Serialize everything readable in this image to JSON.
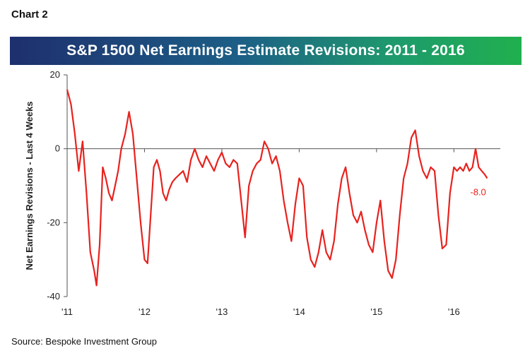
{
  "header": {
    "chart_label": "Chart 2",
    "title": "S&P 1500 Net Earnings Estimate Revisions: 2011 - 2016"
  },
  "footer": {
    "source": "Source: Bespoke Investment Group"
  },
  "colors": {
    "line": "#e8221e",
    "axis": "#555555",
    "banner_start": "#1e2f6e",
    "banner_end": "#20b04e"
  },
  "chart_data": {
    "type": "line",
    "title": "S&P 1500 Net Earnings Estimate Revisions: 2011 - 2016",
    "xlabel": "",
    "ylabel": "Net Earnings Revisions - Last 4 Weeks",
    "ylim": [
      -40,
      20
    ],
    "xlim": [
      2011.0,
      2016.6
    ],
    "yticks": [
      20,
      0,
      -20,
      -40
    ],
    "xticks": [
      2011,
      2012,
      2013,
      2014,
      2015,
      2016
    ],
    "xtick_labels": [
      "'11",
      "'12",
      "'13",
      "'14",
      "'15",
      "'16"
    ],
    "grid": false,
    "end_label": "-8.0",
    "series": [
      {
        "x": [
          2011.0,
          2011.05,
          2011.1,
          2011.15,
          2011.2,
          2011.25,
          2011.3,
          2011.35,
          2011.38,
          2011.42,
          2011.46,
          2011.5,
          2011.54,
          2011.58,
          2011.62,
          2011.66,
          2011.7,
          2011.75,
          2011.8,
          2011.85,
          2011.9,
          2011.95,
          2012.0,
          2012.04,
          2012.08,
          2012.12,
          2012.16,
          2012.2,
          2012.24,
          2012.28,
          2012.32,
          2012.36,
          2012.4,
          2012.45,
          2012.5,
          2012.55,
          2012.6,
          2012.65,
          2012.7,
          2012.75,
          2012.8,
          2012.85,
          2012.9,
          2012.95,
          2013.0,
          2013.05,
          2013.1,
          2013.15,
          2013.2,
          2013.25,
          2013.3,
          2013.35,
          2013.4,
          2013.45,
          2013.5,
          2013.55,
          2013.6,
          2013.65,
          2013.7,
          2013.75,
          2013.8,
          2013.85,
          2013.9,
          2013.95,
          2014.0,
          2014.05,
          2014.1,
          2014.15,
          2014.2,
          2014.25,
          2014.3,
          2014.35,
          2014.4,
          2014.45,
          2014.5,
          2014.55,
          2014.6,
          2014.65,
          2014.7,
          2014.75,
          2014.8,
          2014.85,
          2014.9,
          2014.95,
          2015.0,
          2015.05,
          2015.1,
          2015.15,
          2015.2,
          2015.25,
          2015.3,
          2015.35,
          2015.4,
          2015.45,
          2015.5,
          2015.55,
          2015.6,
          2015.65,
          2015.7,
          2015.75,
          2015.8,
          2015.85,
          2015.9,
          2015.95,
          2016.0,
          2016.04,
          2016.08,
          2016.12,
          2016.16,
          2016.2,
          2016.24,
          2016.28,
          2016.32,
          2016.36,
          2016.4,
          2016.43
        ],
        "values": [
          16,
          12,
          4,
          -6,
          2,
          -12,
          -28,
          -33,
          -37,
          -26,
          -5,
          -8,
          -12,
          -14,
          -10,
          -6,
          0,
          4,
          10,
          4,
          -8,
          -20,
          -30,
          -31,
          -18,
          -5,
          -3,
          -6,
          -12,
          -14,
          -11,
          -9,
          -8,
          -7,
          -6,
          -9,
          -3,
          0,
          -3,
          -5,
          -2,
          -4,
          -6,
          -3,
          -1,
          -4,
          -5,
          -3,
          -4,
          -14,
          -24,
          -10,
          -6,
          -4,
          -3,
          2,
          0,
          -4,
          -2,
          -6,
          -14,
          -20,
          -25,
          -15,
          -8,
          -10,
          -24,
          -30,
          -32,
          -28,
          -22,
          -28,
          -30,
          -25,
          -15,
          -8,
          -5,
          -12,
          -18,
          -20,
          -17,
          -22,
          -26,
          -28,
          -20,
          -14,
          -25,
          -33,
          -35,
          -30,
          -18,
          -8,
          -4,
          3,
          5,
          -2,
          -6,
          -8,
          -5,
          -6,
          -18,
          -27,
          -26,
          -12,
          -5,
          -6,
          -5,
          -6,
          -4,
          -6,
          -5,
          0,
          -5,
          -6,
          -7,
          -8
        ]
      }
    ]
  }
}
